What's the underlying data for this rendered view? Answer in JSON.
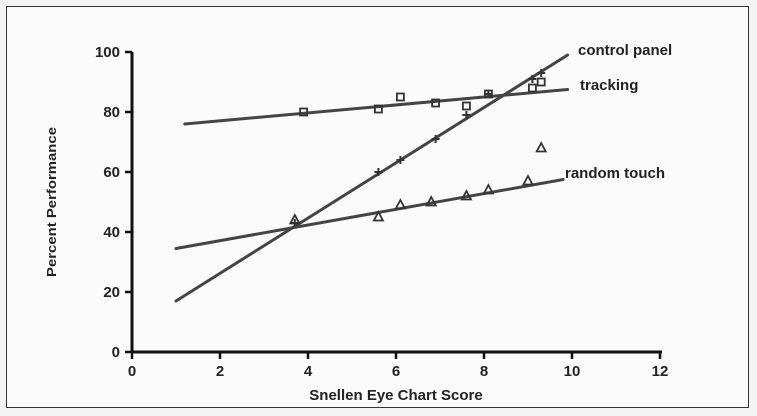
{
  "chart_data": {
    "type": "scatter",
    "title": "",
    "xlabel": "Snellen Eye Chart Score",
    "ylabel": "Percent Performance",
    "xlim": [
      0,
      12
    ],
    "ylim": [
      0,
      100
    ],
    "x_ticks": [
      0,
      2,
      4,
      6,
      8,
      10,
      12
    ],
    "y_ticks": [
      0,
      20,
      40,
      60,
      80,
      100
    ],
    "grid": false,
    "legend": "none",
    "series": [
      {
        "name": "control panel",
        "marker": "cross",
        "points": [
          [
            3.7,
            43
          ],
          [
            5.6,
            60
          ],
          [
            6.1,
            64
          ],
          [
            6.9,
            71
          ],
          [
            7.6,
            79
          ],
          [
            8.1,
            86
          ],
          [
            9.1,
            91
          ],
          [
            9.3,
            93
          ]
        ],
        "fit": [
          [
            1.0,
            17
          ],
          [
            9.9,
            99
          ]
        ]
      },
      {
        "name": "tracking",
        "marker": "square",
        "points": [
          [
            3.9,
            80
          ],
          [
            5.6,
            81
          ],
          [
            6.1,
            85
          ],
          [
            6.9,
            83
          ],
          [
            7.6,
            82
          ],
          [
            8.1,
            86
          ],
          [
            9.1,
            88
          ],
          [
            9.3,
            90
          ]
        ],
        "fit": [
          [
            1.2,
            76
          ],
          [
            9.9,
            87.5
          ]
        ]
      },
      {
        "name": "random touch",
        "marker": "triangle",
        "points": [
          [
            3.7,
            44
          ],
          [
            5.6,
            45
          ],
          [
            6.1,
            49
          ],
          [
            6.8,
            50
          ],
          [
            7.6,
            52
          ],
          [
            8.1,
            54
          ],
          [
            9.0,
            57
          ],
          [
            9.3,
            68
          ]
        ],
        "fit": [
          [
            1.0,
            34.5
          ],
          [
            9.8,
            57.5
          ]
        ]
      }
    ]
  }
}
